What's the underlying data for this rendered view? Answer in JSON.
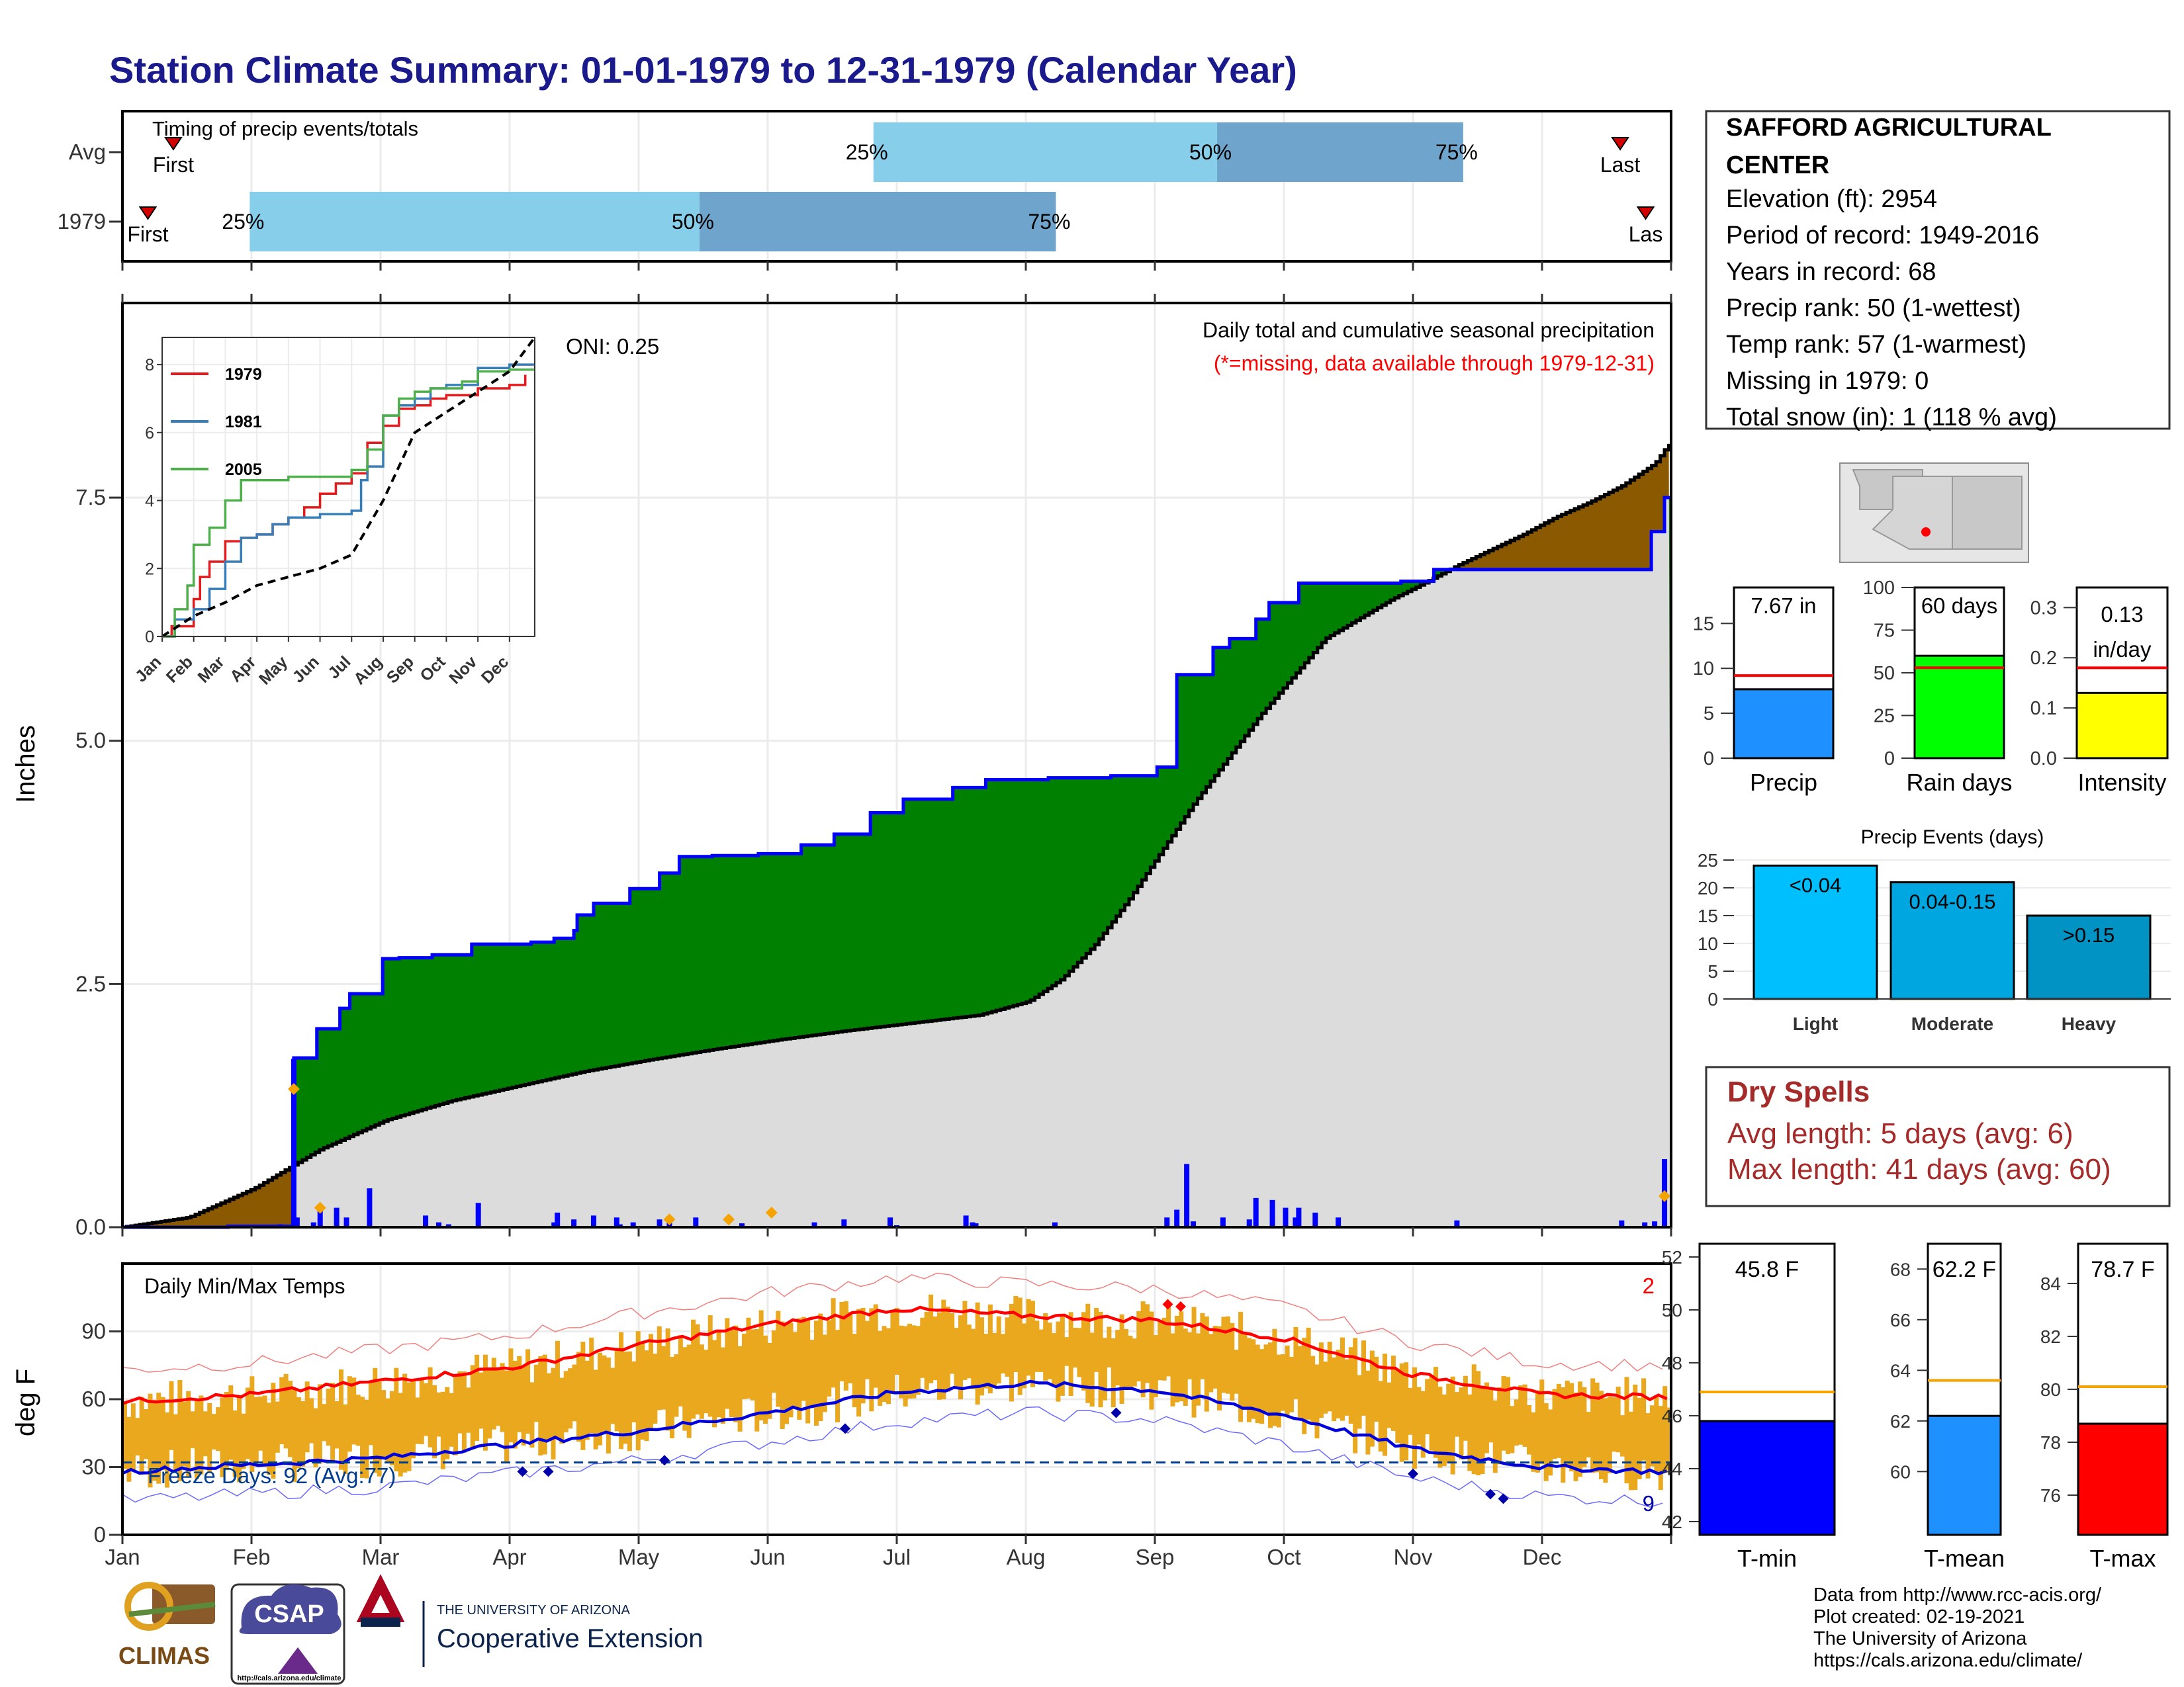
{
  "page": {
    "title": "Station Climate Summary: 01-01-1979 to 12-31-1979 (Calendar Year)",
    "footer_lines": [
      "Data from http://www.rcc-acis.org/",
      "Plot created: 02-19-2021",
      "The University of Arizona",
      "https://cals.arizona.edu/climate/"
    ],
    "logos": {
      "climas": "CLIMAS",
      "csap": "CSAP",
      "csap_url": "http://cals.arizona.edu/climate",
      "ua_small": "THE UNIVERSITY OF ARIZONA",
      "ua_big": "Cooperative Extension"
    }
  },
  "station": {
    "name_line1": "SAFFORD AGRICULTURAL",
    "name_line2": "CENTER",
    "lines": [
      "Elevation (ft): 2954",
      "Period of record: 1949-2016",
      "Years in record: 68",
      "Precip rank: 50 (1-wettest)",
      "Temp rank: 57 (1-warmest)",
      "Missing in 1979: 0",
      "Total snow (in): 1 (118 % avg)"
    ]
  },
  "timing": {
    "label": "Timing of precip events/totals",
    "rows": [
      "Avg",
      "1979"
    ],
    "first_label": "First",
    "last_label": "Last",
    "last_label_1979": "Las",
    "pct_labels": [
      "25%",
      "50%",
      "75%"
    ],
    "avg_days": {
      "first": 12,
      "p25": 177,
      "p50": 258,
      "p75": 316,
      "last": 353
    },
    "y1979_days": {
      "first": 6,
      "p25": 30,
      "p50": 136,
      "p75": 220,
      "last": 359
    }
  },
  "chart_data": [
    {
      "type": "area",
      "name": "main-precip",
      "title": "Daily total and cumulative seasonal precipitation",
      "subtitle": "(*=missing, data available through 1979-12-31)",
      "oni": "ONI: 0.25",
      "ylabel": "Inches",
      "ylim": [
        0,
        9.5
      ],
      "y_ticks": [
        0.0,
        2.5,
        5.0,
        7.5
      ],
      "y_tick_labels": [
        "0.0",
        "2.5",
        "5.0",
        "7.5"
      ],
      "cumulative_1979_steps": [
        [
          0,
          0
        ],
        [
          32,
          0.01
        ],
        [
          52,
          1.74
        ],
        [
          59,
          2.04
        ],
        [
          66,
          2.25
        ],
        [
          69,
          2.4
        ],
        [
          79,
          2.76
        ],
        [
          84,
          2.77
        ],
        [
          94,
          2.8
        ],
        [
          106,
          2.91
        ],
        [
          124,
          2.93
        ],
        [
          131,
          2.97
        ],
        [
          137,
          3.05
        ],
        [
          138,
          3.21
        ],
        [
          143,
          3.33
        ],
        [
          154,
          3.48
        ],
        [
          163,
          3.64
        ],
        [
          169,
          3.81
        ],
        [
          179,
          3.82
        ],
        [
          193,
          3.84
        ],
        [
          206,
          3.93
        ],
        [
          216,
          4.04
        ],
        [
          227,
          4.26
        ],
        [
          237,
          4.4
        ],
        [
          252,
          4.52
        ],
        [
          262,
          4.6
        ],
        [
          281,
          4.62
        ],
        [
          300,
          4.64
        ],
        [
          314,
          4.73
        ],
        [
          320,
          5.68
        ],
        [
          331,
          5.96
        ],
        [
          336,
          6.05
        ],
        [
          344,
          6.25
        ],
        [
          348,
          6.42
        ],
        [
          357,
          6.62
        ],
        [
          365,
          6.62
        ],
        [
          388,
          6.64
        ],
        [
          398,
          6.76
        ],
        [
          418,
          6.76
        ],
        [
          430,
          6.76
        ],
        [
          445,
          6.76
        ],
        [
          450,
          6.76
        ],
        [
          461,
          6.76
        ],
        [
          463,
          6.76
        ],
        [
          464,
          7.15
        ],
        [
          468,
          7.5
        ]
      ],
      "average_cumulative": [
        [
          0,
          0
        ],
        [
          20,
          0.1
        ],
        [
          40,
          0.4
        ],
        [
          60,
          0.8
        ],
        [
          80,
          1.1
        ],
        [
          100,
          1.3
        ],
        [
          120,
          1.45
        ],
        [
          140,
          1.6
        ],
        [
          160,
          1.72
        ],
        [
          180,
          1.83
        ],
        [
          200,
          1.93
        ],
        [
          220,
          2.02
        ],
        [
          240,
          2.1
        ],
        [
          260,
          2.18
        ],
        [
          275,
          2.32
        ],
        [
          285,
          2.55
        ],
        [
          295,
          2.9
        ],
        [
          305,
          3.35
        ],
        [
          315,
          3.85
        ],
        [
          325,
          4.35
        ],
        [
          335,
          4.8
        ],
        [
          345,
          5.25
        ],
        [
          355,
          5.65
        ],
        [
          365,
          6.05
        ],
        [
          375,
          6.25
        ],
        [
          385,
          6.45
        ],
        [
          395,
          6.62
        ],
        [
          405,
          6.8
        ],
        [
          415,
          6.96
        ],
        [
          425,
          7.12
        ],
        [
          435,
          7.3
        ],
        [
          445,
          7.45
        ],
        [
          455,
          7.62
        ],
        [
          465,
          7.85
        ],
        [
          472,
          8.18
        ]
      ],
      "daily_bars": [
        [
          35,
          0.01
        ],
        [
          40,
          0.02
        ],
        [
          42,
          0.01
        ],
        [
          45,
          0.02
        ],
        [
          48,
          0.03
        ],
        [
          52,
          1.73
        ],
        [
          53,
          0.1
        ],
        [
          58,
          0.05
        ],
        [
          60,
          0.2
        ],
        [
          65,
          0.2
        ],
        [
          68,
          0.1
        ],
        [
          75,
          0.4
        ],
        [
          92,
          0.12
        ],
        [
          96,
          0.05
        ],
        [
          99,
          0.03
        ],
        [
          108,
          0.25
        ],
        [
          131,
          0.05
        ],
        [
          132,
          0.15
        ],
        [
          137,
          0.08
        ],
        [
          143,
          0.12
        ],
        [
          150,
          0.1
        ],
        [
          151,
          0.03
        ],
        [
          155,
          0.05
        ],
        [
          163,
          0.08
        ],
        [
          166,
          0.06
        ],
        [
          174,
          0.1
        ],
        [
          188,
          0.04
        ],
        [
          210,
          0.05
        ],
        [
          219,
          0.08
        ],
        [
          233,
          0.1
        ],
        [
          235,
          0.02
        ],
        [
          256,
          0.12
        ],
        [
          258,
          0.05
        ],
        [
          259,
          0.04
        ],
        [
          283,
          0.05
        ],
        [
          317,
          0.1
        ],
        [
          320,
          0.18
        ],
        [
          323,
          0.65
        ],
        [
          325,
          0.06
        ],
        [
          334,
          0.1
        ],
        [
          342,
          0.08
        ],
        [
          344,
          0.3
        ],
        [
          349,
          0.28
        ],
        [
          353,
          0.2
        ],
        [
          356,
          0.1
        ],
        [
          357,
          0.2
        ],
        [
          362,
          0.15
        ],
        [
          369,
          0.1
        ],
        [
          405,
          0.07
        ],
        [
          455,
          0.07
        ],
        [
          462,
          0.05
        ],
        [
          465,
          0.06
        ],
        [
          468,
          0.7
        ]
      ],
      "notes": "x is day index where Jan=0..Dec ends ~470 on the drawn axis (approx month-length mapping); y in inches"
    },
    {
      "type": "line",
      "name": "inset-cumulative",
      "y_ticks": [
        0,
        2,
        4,
        6,
        8
      ],
      "x_ticks": [
        "Jan",
        "Feb",
        "Mar",
        "Apr",
        "May",
        "Jun",
        "Jul",
        "Aug",
        "Sep",
        "Oct",
        "Nov",
        "Dec"
      ],
      "series": [
        {
          "name": "1979",
          "color": "#e41a1c",
          "values": [
            [
              0,
              0
            ],
            [
              0.3,
              0.3
            ],
            [
              1,
              1.1
            ],
            [
              1.2,
              1.75
            ],
            [
              1.5,
              2.2
            ],
            [
              2,
              2.8
            ],
            [
              2.5,
              2.9
            ],
            [
              3,
              3
            ],
            [
              3.5,
              3.3
            ],
            [
              4,
              3.5
            ],
            [
              4.5,
              3.8
            ],
            [
              5,
              4.2
            ],
            [
              5.5,
              4.5
            ],
            [
              6,
              4.8
            ],
            [
              6.5,
              5.7
            ],
            [
              7,
              6.2
            ],
            [
              7.5,
              6.7
            ],
            [
              8,
              6.8
            ],
            [
              8.5,
              7
            ],
            [
              9,
              7.1
            ],
            [
              10,
              7.3
            ],
            [
              11,
              7.4
            ],
            [
              11.5,
              7.7
            ]
          ]
        },
        {
          "name": "1981",
          "color": "#377eb8",
          "values": [
            [
              0,
              0
            ],
            [
              0.4,
              0.5
            ],
            [
              1,
              0.8
            ],
            [
              1.5,
              1.4
            ],
            [
              2,
              2.2
            ],
            [
              2.5,
              2.9
            ],
            [
              3,
              3
            ],
            [
              3.5,
              3.3
            ],
            [
              4,
              3.5
            ],
            [
              4.5,
              3.5
            ],
            [
              5,
              3.6
            ],
            [
              5.5,
              3.6
            ],
            [
              6,
              3.7
            ],
            [
              6.3,
              4.6
            ],
            [
              6.5,
              5
            ],
            [
              7,
              6.5
            ],
            [
              7.5,
              6.8
            ],
            [
              8,
              7
            ],
            [
              8.5,
              7.3
            ],
            [
              9,
              7.4
            ],
            [
              10,
              7.9
            ],
            [
              11,
              8.0
            ],
            [
              11.8,
              8.0
            ]
          ]
        },
        {
          "name": "2005",
          "color": "#4daf4a",
          "values": [
            [
              0,
              0
            ],
            [
              0.4,
              0.8
            ],
            [
              0.8,
              1.5
            ],
            [
              1,
              2.7
            ],
            [
              1.5,
              3.2
            ],
            [
              2,
              4
            ],
            [
              2.5,
              4.6
            ],
            [
              3,
              4.6
            ],
            [
              4,
              4.7
            ],
            [
              5,
              4.7
            ],
            [
              6,
              4.9
            ],
            [
              6.5,
              5.5
            ],
            [
              7,
              6.5
            ],
            [
              7.5,
              7.0
            ],
            [
              8,
              7.2
            ],
            [
              8.5,
              7.3
            ],
            [
              9,
              7.3
            ],
            [
              9.5,
              7.5
            ],
            [
              10,
              7.8
            ],
            [
              11,
              7.85
            ],
            [
              11.8,
              7.85
            ]
          ]
        },
        {
          "name": "",
          "color": "#000000",
          "dashed": true,
          "values": [
            [
              0,
              0
            ],
            [
              1,
              0.6
            ],
            [
              2,
              1.0
            ],
            [
              3,
              1.5
            ],
            [
              4,
              1.75
            ],
            [
              5,
              2.0
            ],
            [
              6,
              2.4
            ],
            [
              7,
              4.0
            ],
            [
              8,
              6.0
            ],
            [
              9,
              6.6
            ],
            [
              10,
              7.2
            ],
            [
              11,
              7.8
            ],
            [
              11.8,
              8.8
            ]
          ]
        }
      ],
      "ylim": [
        0,
        8.8
      ],
      "xlim": [
        0,
        11.8
      ]
    },
    {
      "type": "line",
      "name": "daily-temps",
      "title": "Daily Min/Max Temps",
      "ylabel": "deg F",
      "ylim": [
        0,
        120
      ],
      "y_ticks": [
        0,
        30,
        60,
        90
      ],
      "x_ticks": [
        "Jan",
        "Feb",
        "Mar",
        "Apr",
        "May",
        "Jun",
        "Jul",
        "Aug",
        "Sep",
        "Oct",
        "Nov",
        "Dec"
      ],
      "freeze_label": "Freeze Days: 92 (Avg:77)",
      "freeze_line": 32,
      "count_top": "2",
      "count_bottom": "9",
      "avg_max": [
        [
          0,
          59
        ],
        [
          1,
          62
        ],
        [
          2,
          68
        ],
        [
          3,
          74
        ],
        [
          4,
          84
        ],
        [
          5,
          93
        ],
        [
          6,
          100
        ],
        [
          7,
          97
        ],
        [
          8,
          95
        ],
        [
          9,
          87
        ],
        [
          10,
          71
        ],
        [
          11,
          62
        ],
        [
          11.9,
          61
        ]
      ],
      "avg_min": [
        [
          0,
          28
        ],
        [
          1,
          31
        ],
        [
          2,
          34
        ],
        [
          3,
          40
        ],
        [
          4,
          46
        ],
        [
          5,
          54
        ],
        [
          6,
          63
        ],
        [
          7,
          67
        ],
        [
          8,
          64
        ],
        [
          9,
          53
        ],
        [
          10,
          38
        ],
        [
          11,
          30
        ],
        [
          11.9,
          28
        ]
      ]
    },
    {
      "type": "bar",
      "name": "precip-total",
      "categories": [
        "Precip"
      ],
      "values": [
        7.67
      ],
      "label": "7.67 in",
      "average": 9.2,
      "ylim": [
        0,
        19
      ],
      "y_ticks": [
        0,
        5,
        10,
        15
      ]
    },
    {
      "type": "bar",
      "name": "rain-days",
      "categories": [
        "Rain days"
      ],
      "values": [
        60
      ],
      "label": "60 days",
      "average": 53,
      "ylim": [
        0,
        100
      ],
      "y_ticks": [
        0,
        25,
        50,
        75,
        100
      ]
    },
    {
      "type": "bar",
      "name": "intensity",
      "categories": [
        "Intensity"
      ],
      "values": [
        0.13
      ],
      "label_line1": "0.13",
      "label_line2": "in/day",
      "average": 0.18,
      "ylim": [
        0,
        0.34
      ],
      "y_ticks": [
        0.0,
        0.1,
        0.2,
        0.3
      ],
      "y_tick_labels": [
        "0.0",
        "0.1",
        "0.2",
        "0.3"
      ]
    },
    {
      "type": "bar",
      "name": "precip-events",
      "title": "Precip Events (days)",
      "categories": [
        "Light",
        "Moderate",
        "Heavy"
      ],
      "values": [
        24,
        21,
        15
      ],
      "value_labels": [
        "<0.04",
        "0.04-0.15",
        ">0.15"
      ],
      "ylim": [
        0,
        25
      ],
      "y_ticks": [
        0,
        5,
        10,
        15,
        20,
        25
      ]
    },
    {
      "type": "bar",
      "name": "tmin",
      "categories": [
        "T-min"
      ],
      "values": [
        45.8
      ],
      "label": "45.8 F",
      "average": 46.9,
      "ylim": [
        41.5,
        52.5
      ],
      "y_ticks": [
        42,
        44,
        46,
        48,
        50,
        52
      ]
    },
    {
      "type": "bar",
      "name": "tmean",
      "categories": [
        "T-mean"
      ],
      "values": [
        62.2
      ],
      "label": "62.2 F",
      "average": 63.6,
      "ylim": [
        57.5,
        69
      ],
      "y_ticks": [
        60,
        62,
        64,
        66,
        68
      ]
    },
    {
      "type": "bar",
      "name": "tmax",
      "categories": [
        "T-max"
      ],
      "values": [
        78.7
      ],
      "label": "78.7 F",
      "average": 80.1,
      "ylim": [
        74.5,
        85.5
      ],
      "y_ticks": [
        76,
        78,
        80,
        82,
        84
      ]
    }
  ],
  "dry_spells": {
    "title": "Dry Spells",
    "line1": "Avg length: 5 days (avg: 6)",
    "line2": "Max length: 41 days (avg: 60)"
  },
  "colors": {
    "title": "#1a1a8c",
    "green": "#008000",
    "brown": "#8b5a00",
    "grey": "#dcdcdc",
    "blue": "#0000ff",
    "light_blue": "#87ceeb",
    "mid_blue": "#6fa5cc",
    "orange_bar": "#e9a81d",
    "dry_red": "#a52a2a"
  }
}
